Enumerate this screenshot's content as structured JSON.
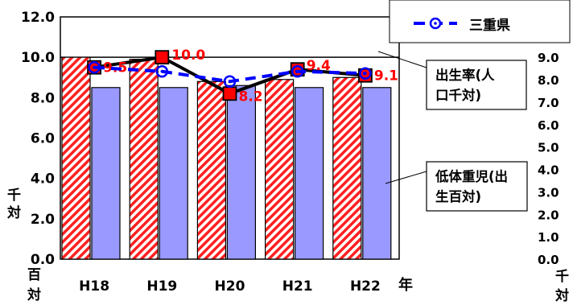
{
  "chart_data": {
    "type": "bar",
    "categories": [
      "H18",
      "H19",
      "H20",
      "H21",
      "H22"
    ],
    "year_label": "年",
    "left_axis": {
      "ylim": [
        0,
        12
      ],
      "ticks": [
        "0.0",
        "2.0",
        "4.0",
        "6.0",
        "8.0",
        "10.0",
        "12.0"
      ],
      "unit_top": "千対",
      "unit_bottom": "百対"
    },
    "right_axis": {
      "ylim": [
        0,
        10.8
      ],
      "ticks": [
        "0.0",
        "1.0",
        "2.0",
        "3.0",
        "4.0",
        "5.0",
        "6.0",
        "7.0",
        "8.0",
        "9.0"
      ],
      "unit": "千対"
    },
    "series": [
      {
        "type": "bar",
        "axis": "left",
        "pattern": "hatch",
        "color": "#ff0000",
        "values": [
          10.0,
          9.9,
          8.8,
          8.9,
          9.0
        ]
      },
      {
        "type": "bar",
        "axis": "left",
        "color": "#9999ff",
        "values": [
          8.5,
          8.5,
          8.6,
          8.5,
          8.5
        ]
      },
      {
        "type": "line",
        "axis": "left",
        "style": "solid",
        "marker": "square",
        "color": "#000000",
        "marker_color": "#ff0000",
        "values": [
          9.5,
          10.0,
          8.2,
          9.4,
          9.1
        ],
        "labels": [
          "9.5",
          "10.0",
          "8.2",
          "9.4",
          "9.1"
        ]
      },
      {
        "type": "line",
        "axis": "left",
        "name": "三重県",
        "style": "dashed",
        "marker": "circle-dot",
        "color": "#0000ff",
        "values": [
          9.5,
          9.3,
          8.8,
          9.3,
          9.2
        ]
      }
    ],
    "legend": {
      "position": "top-right",
      "entries": [
        "三重県"
      ]
    },
    "annotations": [
      {
        "text": "出生率(人\n口千対)"
      },
      {
        "text": "低体重児(出\n生百対)"
      }
    ]
  }
}
